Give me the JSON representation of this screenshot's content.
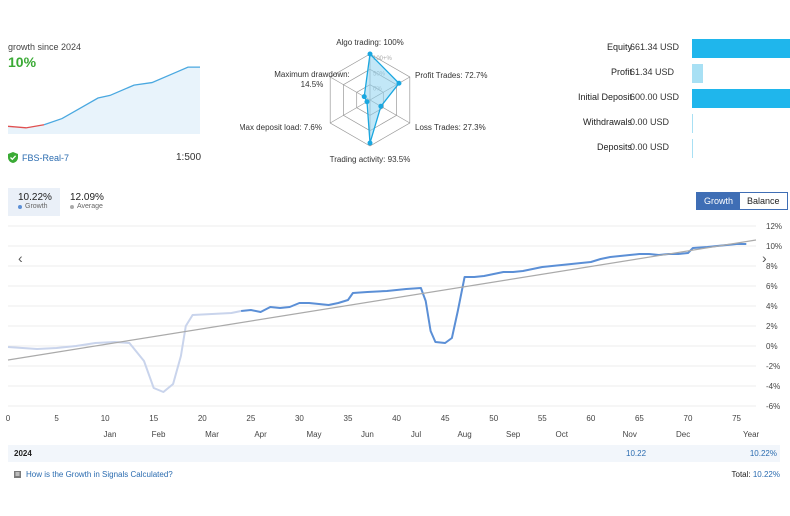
{
  "mini": {
    "title": "growth since 2024",
    "value": "10%",
    "account": "FBS-Real-7",
    "leverage": "1:500",
    "colors": {
      "line": "#4aa8e0",
      "negative": "#e05050",
      "fill": "#e8f3fb"
    },
    "points": [
      [
        0,
        -1.5
      ],
      [
        6,
        -1.8
      ],
      [
        12,
        -1.2
      ],
      [
        18,
        0
      ],
      [
        24,
        2
      ],
      [
        30,
        4
      ],
      [
        34,
        4.5
      ],
      [
        42,
        6.5
      ],
      [
        48,
        7
      ],
      [
        56,
        9
      ],
      [
        60,
        10
      ],
      [
        64,
        10
      ]
    ]
  },
  "radar": {
    "labels": {
      "algo": "Algo trading: 100%",
      "profit": "Profit Trades: 72.7%",
      "loss": "Loss Trades: 27.3%",
      "activity": "Trading activity: 93.5%",
      "deposit_load": "Max deposit load: 7.6%",
      "drawdown_title": "Maximum drawdown:",
      "drawdown_value": "14.5%"
    },
    "ring_labels": [
      "100+%",
      "50%",
      "0%"
    ],
    "values": {
      "algo": 100,
      "profit": 72.7,
      "loss": 27.3,
      "activity": 93.5,
      "deposit_load": 7.6,
      "drawdown": 14.5
    },
    "colors": {
      "stroke": "#1aa7e0",
      "fill": "#8fd3f0"
    }
  },
  "stats": [
    {
      "label": "Equity",
      "value": "661.34 USD",
      "amount": 661.34,
      "color": "#1fb6ec"
    },
    {
      "label": "Profit",
      "value": "61.34 USD",
      "amount": 61.34,
      "color": "#a8e0f4"
    },
    {
      "label": "Initial Deposit",
      "value": "600.00 USD",
      "amount": 600.0,
      "color": "#1fb6ec"
    },
    {
      "label": "Withdrawals",
      "value": "0.00 USD",
      "amount": 0,
      "color": "#a8e0f4"
    },
    {
      "label": "Deposits",
      "value": "0.00 USD",
      "amount": 0,
      "color": "#a8e0f4"
    }
  ],
  "stats_max": 661.34,
  "summary": {
    "growth_value": "10.22%",
    "growth_label": "Growth",
    "average_value": "12.09%",
    "average_label": "Average",
    "growth_color": "#5b8fd6",
    "average_color": "#aaaaaa"
  },
  "buttons": {
    "growth": "Growth",
    "balance": "Balance"
  },
  "nav": {
    "prev": "‹",
    "next": "›"
  },
  "chart_data": {
    "type": "line",
    "xlim": [
      0,
      77
    ],
    "ylim": [
      -6,
      12
    ],
    "x_ticks": [
      0,
      5,
      10,
      15,
      20,
      25,
      30,
      35,
      40,
      45,
      50,
      55,
      60,
      65,
      70,
      75
    ],
    "y_ticks": [
      "12%",
      "10%",
      "8%",
      "6%",
      "4%",
      "2%",
      "0%",
      "-2%",
      "-4%",
      "-6%"
    ],
    "y_tick_values": [
      12,
      10,
      8,
      6,
      4,
      2,
      0,
      -2,
      -4,
      -6
    ],
    "months": [
      {
        "label": "Jan",
        "x": 10.5
      },
      {
        "label": "Feb",
        "x": 15.5
      },
      {
        "label": "Mar",
        "x": 21
      },
      {
        "label": "Apr",
        "x": 26
      },
      {
        "label": "May",
        "x": 31.5
      },
      {
        "label": "Jun",
        "x": 37
      },
      {
        "label": "Jul",
        "x": 42
      },
      {
        "label": "Aug",
        "x": 47
      },
      {
        "label": "Sep",
        "x": 52
      },
      {
        "label": "Oct",
        "x": 57
      },
      {
        "label": "Nov",
        "x": 64
      },
      {
        "label": "Dec",
        "x": 69.5
      },
      {
        "label": "Year",
        "x": 76.5
      }
    ],
    "series": [
      {
        "color": "#c9d4ec",
        "points": [
          [
            0,
            -0.1
          ],
          [
            3,
            -0.3
          ],
          [
            5,
            -0.2
          ],
          [
            7,
            0
          ],
          [
            9,
            0.3
          ],
          [
            11,
            0.4
          ],
          [
            12.5,
            0.3
          ],
          [
            14,
            -1.5
          ],
          [
            15,
            -4.2
          ],
          [
            16,
            -4.6
          ],
          [
            17,
            -3.8
          ],
          [
            17.8,
            -1
          ],
          [
            18.3,
            2
          ],
          [
            19,
            3.1
          ],
          [
            21,
            3.2
          ],
          [
            23,
            3.3
          ],
          [
            24,
            3.5
          ]
        ]
      },
      {
        "color": "#5b8fd6",
        "points": [
          [
            24,
            3.5
          ],
          [
            25,
            3.6
          ],
          [
            26,
            3.4
          ],
          [
            27,
            3.9
          ],
          [
            28,
            3.8
          ],
          [
            29,
            3.9
          ],
          [
            30,
            4.3
          ],
          [
            31,
            4.3
          ],
          [
            32,
            4.2
          ],
          [
            33,
            4.1
          ],
          [
            34,
            4.3
          ],
          [
            35,
            4.6
          ],
          [
            35.5,
            5.3
          ],
          [
            37,
            5.4
          ],
          [
            39,
            5.5
          ],
          [
            41,
            5.7
          ],
          [
            42.5,
            5.8
          ],
          [
            43,
            4.5
          ],
          [
            43.5,
            1.5
          ],
          [
            44,
            0.4
          ],
          [
            45,
            0.3
          ],
          [
            45.7,
            0.8
          ],
          [
            46.3,
            3.5
          ],
          [
            47,
            6.9
          ],
          [
            48,
            6.9
          ],
          [
            49,
            7.0
          ],
          [
            50,
            7.2
          ],
          [
            51,
            7.4
          ],
          [
            52,
            7.4
          ],
          [
            53,
            7.5
          ],
          [
            54,
            7.7
          ],
          [
            55,
            7.9
          ],
          [
            56,
            8.0
          ],
          [
            57,
            8.1
          ],
          [
            58,
            8.2
          ],
          [
            59,
            8.3
          ],
          [
            60,
            8.4
          ],
          [
            61,
            8.7
          ],
          [
            62,
            8.9
          ],
          [
            63,
            9.0
          ],
          [
            64,
            9.1
          ],
          [
            65,
            9.2
          ],
          [
            66,
            9.2
          ],
          [
            67,
            9.1
          ],
          [
            68,
            9.2
          ],
          [
            69,
            9.2
          ],
          [
            70,
            9.3
          ],
          [
            70.5,
            9.8
          ],
          [
            72,
            9.9
          ],
          [
            73,
            10.0
          ],
          [
            74,
            10.1
          ],
          [
            75,
            10.2
          ],
          [
            76,
            10.2
          ]
        ]
      },
      {
        "color": "#aaaaaa",
        "points": [
          [
            0,
            -1.4
          ],
          [
            77,
            10.6
          ]
        ]
      }
    ]
  },
  "table": {
    "year": "2024",
    "value": "10.22",
    "year_value": "10.22%"
  },
  "footer": {
    "link": "How is the Growth in Signals Calculated?",
    "total_label": "Total:",
    "total_value": "10.22%"
  }
}
